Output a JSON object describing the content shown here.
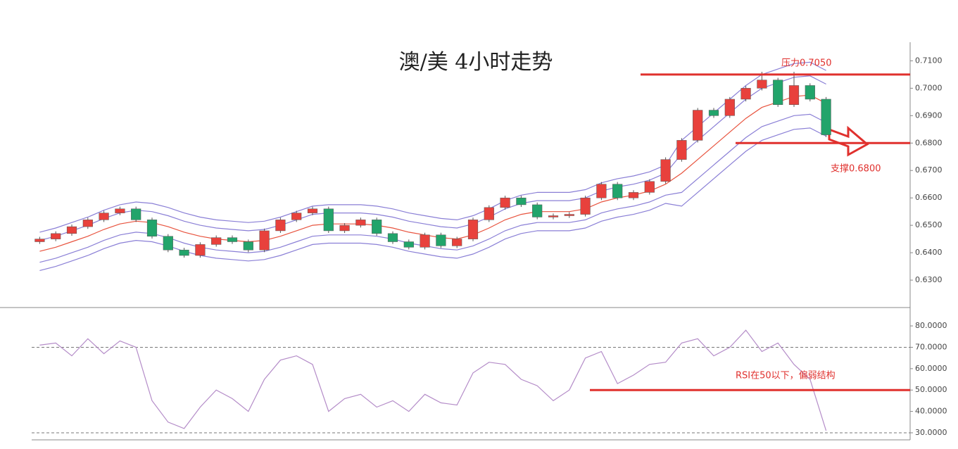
{
  "chart_data": [
    {
      "type": "candlestick",
      "title": "澳/美 4小时走势",
      "ylim": [
        0.62,
        0.7155
      ],
      "yticks": [
        {
          "value": 0.71,
          "label": "0.7100"
        },
        {
          "value": 0.7,
          "label": "0.7000"
        },
        {
          "value": 0.69,
          "label": "0.6900"
        },
        {
          "value": 0.68,
          "label": "0.6800"
        },
        {
          "value": 0.67,
          "label": "0.6700"
        },
        {
          "value": 0.66,
          "label": "0.6600"
        },
        {
          "value": 0.65,
          "label": "0.6500"
        },
        {
          "value": 0.64,
          "label": "0.6400"
        },
        {
          "value": 0.63,
          "label": "0.6300"
        }
      ],
      "up_color": "#e8413c",
      "down_color": "#22a46b",
      "open": [
        0.644,
        0.645,
        0.647,
        0.6495,
        0.652,
        0.6545,
        0.656,
        0.652,
        0.646,
        0.641,
        0.639,
        0.643,
        0.6455,
        0.644,
        0.641,
        0.648,
        0.652,
        0.6545,
        0.656,
        0.648,
        0.65,
        0.652,
        0.647,
        0.644,
        0.642,
        0.6465,
        0.6425,
        0.645,
        0.652,
        0.6565,
        0.66,
        0.6575,
        0.653,
        0.6535,
        0.654,
        0.66,
        0.665,
        0.66,
        0.662,
        0.666,
        0.674,
        0.681,
        0.692,
        0.69,
        0.696,
        0.7,
        0.703,
        0.694,
        0.701,
        0.696
      ],
      "high": [
        0.6458,
        0.6478,
        0.6503,
        0.6528,
        0.6553,
        0.6568,
        0.6568,
        0.6528,
        0.6468,
        0.6418,
        0.6438,
        0.6463,
        0.6463,
        0.6448,
        0.6488,
        0.6528,
        0.6553,
        0.6568,
        0.6568,
        0.6508,
        0.6528,
        0.6528,
        0.6478,
        0.6448,
        0.6473,
        0.6473,
        0.6458,
        0.6528,
        0.6573,
        0.6608,
        0.6608,
        0.6583,
        0.6543,
        0.6548,
        0.6608,
        0.6658,
        0.6658,
        0.6628,
        0.6668,
        0.6748,
        0.6818,
        0.6928,
        0.6928,
        0.6968,
        0.7008,
        0.706,
        0.7038,
        0.706,
        0.7018,
        0.6968
      ],
      "low": [
        0.6432,
        0.6442,
        0.6462,
        0.6487,
        0.6512,
        0.6537,
        0.6512,
        0.6452,
        0.6402,
        0.6382,
        0.6382,
        0.6422,
        0.6432,
        0.6402,
        0.6402,
        0.6472,
        0.6512,
        0.6537,
        0.6472,
        0.6472,
        0.6492,
        0.6462,
        0.6432,
        0.6412,
        0.6412,
        0.6417,
        0.6417,
        0.6442,
        0.6512,
        0.6557,
        0.6567,
        0.6522,
        0.6522,
        0.6527,
        0.6532,
        0.6592,
        0.6592,
        0.6592,
        0.6612,
        0.6652,
        0.6732,
        0.6802,
        0.6892,
        0.6892,
        0.6952,
        0.6992,
        0.6932,
        0.6932,
        0.6952,
        0.6822
      ],
      "close": [
        0.645,
        0.647,
        0.6495,
        0.652,
        0.6545,
        0.656,
        0.652,
        0.646,
        0.641,
        0.639,
        0.643,
        0.6455,
        0.644,
        0.641,
        0.648,
        0.652,
        0.6545,
        0.656,
        0.648,
        0.65,
        0.652,
        0.647,
        0.644,
        0.642,
        0.6465,
        0.6425,
        0.645,
        0.652,
        0.6565,
        0.66,
        0.6575,
        0.653,
        0.6535,
        0.654,
        0.66,
        0.665,
        0.66,
        0.662,
        0.666,
        0.674,
        0.681,
        0.692,
        0.69,
        0.696,
        0.7,
        0.703,
        0.694,
        0.701,
        0.696,
        0.683
      ],
      "lines": [
        {
          "color": "#8a7fd6",
          "values": [
            0.6475,
            0.649,
            0.651,
            0.653,
            0.6555,
            0.6575,
            0.6585,
            0.658,
            0.6565,
            0.6545,
            0.653,
            0.652,
            0.6515,
            0.651,
            0.6515,
            0.653,
            0.655,
            0.657,
            0.6575,
            0.6575,
            0.6575,
            0.657,
            0.656,
            0.6545,
            0.6535,
            0.6525,
            0.652,
            0.6535,
            0.656,
            0.659,
            0.661,
            0.662,
            0.662,
            0.662,
            0.663,
            0.6655,
            0.667,
            0.668,
            0.6695,
            0.672,
            0.681,
            0.686,
            0.691,
            0.696,
            0.701,
            0.705,
            0.707,
            0.709,
            0.7095,
            0.7065
          ]
        },
        {
          "color": "#8a7fd6",
          "values": [
            0.6445,
            0.646,
            0.648,
            0.65,
            0.6525,
            0.6545,
            0.6555,
            0.655,
            0.6535,
            0.6515,
            0.65,
            0.649,
            0.6485,
            0.648,
            0.6485,
            0.65,
            0.652,
            0.654,
            0.6545,
            0.6545,
            0.6545,
            0.654,
            0.653,
            0.6515,
            0.6505,
            0.6495,
            0.649,
            0.6505,
            0.653,
            0.656,
            0.658,
            0.659,
            0.659,
            0.659,
            0.66,
            0.6625,
            0.664,
            0.665,
            0.6665,
            0.669,
            0.676,
            0.681,
            0.686,
            0.691,
            0.696,
            0.7,
            0.702,
            0.704,
            0.7045,
            0.7015
          ]
        },
        {
          "color": "#e8533e",
          "values": [
            0.6405,
            0.642,
            0.644,
            0.646,
            0.6485,
            0.6505,
            0.6515,
            0.651,
            0.6495,
            0.6475,
            0.646,
            0.645,
            0.6445,
            0.644,
            0.6445,
            0.646,
            0.648,
            0.65,
            0.6505,
            0.6505,
            0.6505,
            0.65,
            0.649,
            0.6475,
            0.6465,
            0.6455,
            0.645,
            0.6465,
            0.649,
            0.652,
            0.654,
            0.655,
            0.655,
            0.655,
            0.656,
            0.6585,
            0.66,
            0.661,
            0.6625,
            0.665,
            0.669,
            0.674,
            0.679,
            0.684,
            0.689,
            0.693,
            0.695,
            0.697,
            0.6975,
            0.6945
          ]
        },
        {
          "color": "#8a7fd6",
          "values": [
            0.6365,
            0.638,
            0.64,
            0.642,
            0.6445,
            0.6465,
            0.6475,
            0.647,
            0.6455,
            0.6435,
            0.642,
            0.641,
            0.6405,
            0.64,
            0.6405,
            0.642,
            0.644,
            0.646,
            0.6465,
            0.6465,
            0.6465,
            0.646,
            0.645,
            0.6435,
            0.6425,
            0.6415,
            0.641,
            0.6425,
            0.645,
            0.648,
            0.65,
            0.651,
            0.651,
            0.651,
            0.652,
            0.6545,
            0.656,
            0.657,
            0.6585,
            0.661,
            0.662,
            0.667,
            0.672,
            0.677,
            0.682,
            0.686,
            0.688,
            0.69,
            0.6905,
            0.6875
          ]
        },
        {
          "color": "#8a7fd6",
          "values": [
            0.6335,
            0.635,
            0.637,
            0.639,
            0.6415,
            0.6435,
            0.6445,
            0.644,
            0.6425,
            0.6405,
            0.639,
            0.638,
            0.6375,
            0.637,
            0.6375,
            0.639,
            0.641,
            0.643,
            0.6435,
            0.6435,
            0.6435,
            0.643,
            0.642,
            0.6405,
            0.6395,
            0.6385,
            0.638,
            0.6395,
            0.642,
            0.645,
            0.647,
            0.648,
            0.648,
            0.648,
            0.649,
            0.6515,
            0.653,
            0.654,
            0.6555,
            0.658,
            0.657,
            0.662,
            0.667,
            0.672,
            0.677,
            0.681,
            0.683,
            0.685,
            0.6855,
            0.6825
          ]
        }
      ],
      "annotations": [
        {
          "text": "压力0.7050",
          "value": 0.705
        },
        {
          "text": "支撑0.6800",
          "value": 0.68
        }
      ]
    },
    {
      "type": "line",
      "ylim": [
        26.7,
        87.6
      ],
      "yticks": [
        {
          "value": 80,
          "label": "80.0000"
        },
        {
          "value": 70,
          "label": "70.0000"
        },
        {
          "value": 60,
          "label": "60.0000"
        },
        {
          "value": 50,
          "label": "50.0000"
        },
        {
          "value": 40,
          "label": "40.0000"
        },
        {
          "value": 30,
          "label": "30.0000"
        }
      ],
      "hlines": [
        70,
        30
      ],
      "color": "#b48cc8",
      "values": [
        71,
        72,
        66,
        74,
        67,
        73,
        70,
        45,
        35,
        32,
        42,
        50,
        46,
        40,
        55,
        64,
        66,
        62,
        40,
        46,
        48,
        42,
        45,
        40,
        48,
        44,
        43,
        58,
        63,
        62,
        55,
        52,
        45,
        50,
        65,
        68,
        53,
        57,
        62,
        63,
        72,
        74,
        66,
        70,
        78,
        68,
        72,
        62,
        55,
        31
      ],
      "annotations": [
        {
          "text": "RSI在50以下，偏弱结构",
          "value": 50
        }
      ]
    }
  ]
}
